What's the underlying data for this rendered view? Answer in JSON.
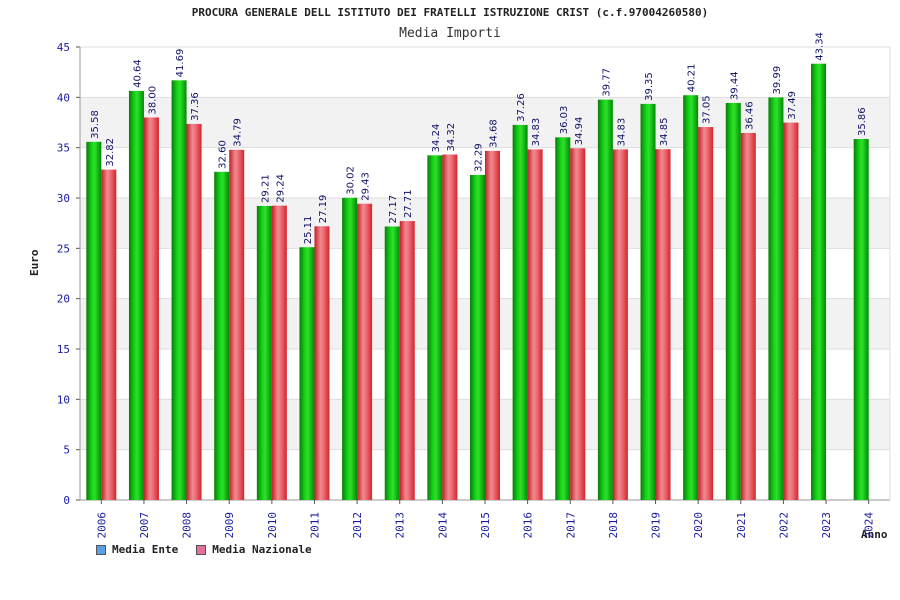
{
  "chart_data": {
    "type": "bar",
    "title": "PROCURA GENERALE DELL ISTITUTO DEI FRATELLI ISTRUZIONE CRIST (c.f.97004260580)",
    "subtitle": "Media Importi",
    "xlabel": "Anno",
    "ylabel": "Euro",
    "ylim": [
      0,
      45
    ],
    "yticks": [
      0,
      5,
      10,
      15,
      20,
      25,
      30,
      35,
      40,
      45
    ],
    "grid": true,
    "legend_position": "bottom-left",
    "categories": [
      "2006",
      "2007",
      "2008",
      "2009",
      "2010",
      "2011",
      "2012",
      "2013",
      "2014",
      "2015",
      "2016",
      "2017",
      "2018",
      "2019",
      "2020",
      "2021",
      "2022",
      "2023",
      "2024"
    ],
    "series": [
      {
        "name": "Media Ente",
        "color": "#00b400",
        "legend_color": "#5aa0e6",
        "values": [
          35.58,
          40.64,
          41.69,
          32.6,
          29.21,
          25.11,
          30.02,
          27.17,
          34.24,
          32.29,
          37.26,
          36.03,
          39.77,
          39.35,
          40.21,
          39.44,
          39.99,
          43.34,
          35.86
        ],
        "labels": [
          "35.58",
          "40.64",
          "41.69",
          "32.60",
          "29.21",
          "25.11",
          "30.02",
          "27.17",
          "34.24",
          "32.29",
          "37.26",
          "36.03",
          "39.77",
          "39.35",
          "40.21",
          "39.44",
          "39.99",
          "43.34",
          "35.86"
        ]
      },
      {
        "name": "Media Nazionale",
        "color": "#e6323c",
        "legend_color": "#e66e9a",
        "values": [
          32.82,
          38.0,
          37.36,
          34.79,
          29.24,
          27.19,
          29.43,
          27.71,
          34.32,
          34.68,
          34.83,
          34.94,
          34.83,
          34.85,
          37.05,
          36.46,
          37.49,
          null,
          null
        ],
        "labels": [
          "32.82",
          "38.00",
          "37.36",
          "34.79",
          "29.24",
          "27.19",
          "29.43",
          "27.71",
          "34.32",
          "34.68",
          "34.83",
          "34.94",
          "34.83",
          "34.85",
          "37.05",
          "36.46",
          "37.49",
          null,
          null
        ]
      }
    ]
  }
}
